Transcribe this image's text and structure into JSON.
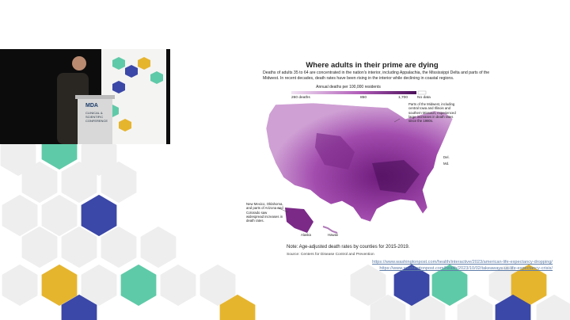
{
  "video": {
    "podium_logo": "MDA",
    "podium_text": "CLINICAL & SCIENTIFIC CONFERENCE"
  },
  "slide": {
    "title": "Where adults in their prime are dying",
    "subtitle": "Deaths of adults 35 to 64 are concentrated in the nation's interior, including Appalachia, the Mississippi Delta and parts of the Midwest. In recent decades, death rates have been rising in the interior while declining in coastal regions.",
    "legend": {
      "title": "Annual deaths per 100,000 residents",
      "labels": [
        "260 deaths",
        "850",
        "1,700",
        "No data"
      ]
    },
    "annotations": [
      "Parts of the Midwest, including central Iowa and Illinois and southern Missouri, experienced large increases in death rates since the 1980s.",
      "New Mexico, Oklahoma, and parts of Arizona and Colorado saw widespread increases in death rates."
    ],
    "map_labels": [
      "Del.",
      "Md.",
      "Alaska",
      "Hawaii"
    ],
    "note": "Note: Age-adjusted death rates by counties for 2015-2019.",
    "source": "Source: Centers for Disease Control and Prevention",
    "links": [
      "https://www.washingtonpost.com/health/interactive/2023/american-life-expectancy-dropping/",
      "https://www.washingtonpost.com/health/2023/10/02/takeaways-us-life-expectancy-crisis/"
    ]
  }
}
